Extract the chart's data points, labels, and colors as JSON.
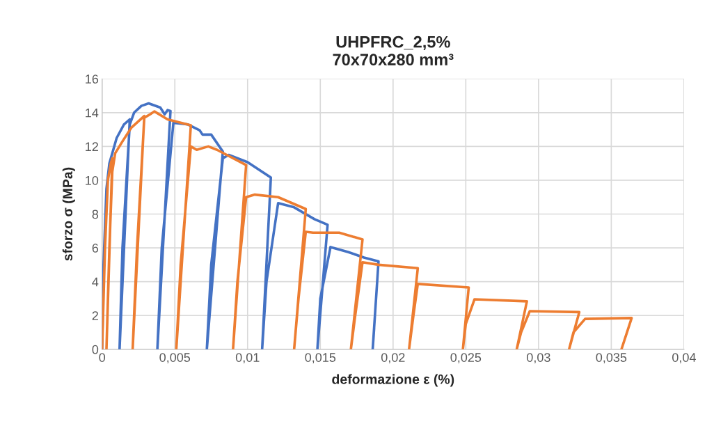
{
  "chart_data": {
    "type": "line",
    "title": "UHPFRC_2,5%\n70x70x280 mm³",
    "xlabel": "deformazione ε (%)",
    "ylabel": "sforzo σ (MPa)",
    "xlim": [
      0,
      0.04
    ],
    "ylim": [
      0,
      16
    ],
    "xticks": [
      0,
      {
        "value": 0.005,
        "label": "0,005"
      },
      {
        "value": 0.01,
        "label": "0,01"
      },
      {
        "value": 0.015,
        "label": "0,015"
      },
      {
        "value": 0.02,
        "label": "0,02"
      },
      {
        "value": 0.025,
        "label": "0,025"
      },
      {
        "value": 0.03,
        "label": "0,03"
      },
      {
        "value": 0.035,
        "label": "0,035"
      },
      {
        "value": 0.04,
        "label": "0,04"
      }
    ],
    "yticks": [
      0,
      2,
      4,
      6,
      8,
      10,
      12,
      14,
      16
    ],
    "grid": true,
    "legend": false,
    "marker": "none",
    "line_style": "solid",
    "series": [
      {
        "color": "#4472c4",
        "x": [
          0,
          0.0001,
          0.0003,
          0.0005,
          0.001,
          0.0015,
          0.0019,
          0.0012,
          0.0014,
          0.0019,
          0.0022,
          0.0027,
          0.0032,
          0.004,
          0.0043,
          0.0045,
          0.0047,
          0.0038,
          0.0041,
          0.0049,
          0.0059,
          0.0067,
          0.0069,
          0.0075,
          0.0083,
          0.0072,
          0.0075,
          0.0083,
          0.0087,
          0.01,
          0.0116,
          0.011,
          0.0113,
          0.0121,
          0.0132,
          0.0146,
          0.0155,
          0.0148,
          0.015,
          0.0157,
          0.0169,
          0.018,
          0.019,
          0.0186,
          0.0187
        ],
        "values": [
          0,
          5,
          9.5,
          11,
          12.5,
          13.3,
          13.6,
          0,
          6,
          13.3,
          14.0,
          14.4,
          14.55,
          14.3,
          13.9,
          14.15,
          14.1,
          0,
          6,
          13.4,
          13.3,
          12.96,
          12.7,
          12.7,
          11.7,
          0,
          5,
          11.3,
          11.5,
          11.07,
          10.16,
          0,
          4,
          8.65,
          8.4,
          7.7,
          7.37,
          0,
          3,
          6.05,
          5.76,
          5.43,
          5.2,
          0,
          1.25
        ]
      },
      {
        "color": "#ed7d31",
        "x": [
          0,
          0.0002,
          0.0004,
          0.0006,
          0.0007,
          0.0003,
          0.0005,
          0.0007,
          0.0009,
          0.0014,
          0.002,
          0.0029,
          0.0021,
          0.0024,
          0.0029,
          0.0033,
          0.0036,
          0.0045,
          0.0061,
          0.0051,
          0.0054,
          0.0061,
          0.0065,
          0.0073,
          0.0079,
          0.0099,
          0.009,
          0.0093,
          0.0099,
          0.0105,
          0.0121,
          0.014,
          0.0132,
          0.0135,
          0.014,
          0.0145,
          0.0163,
          0.0179,
          0.0171,
          0.0174,
          0.0179,
          0.019,
          0.0217,
          0.0211,
          0.0214,
          0.0217,
          0.0252,
          0.0248,
          0.025,
          0.0256,
          0.0292,
          0.0285,
          0.0288,
          0.0294,
          0.0328,
          0.0321,
          0.0324,
          0.0332,
          0.0364,
          0.0357
        ],
        "values": [
          0,
          6,
          10,
          11,
          11.3,
          0,
          6,
          10.5,
          11.6,
          12.3,
          13.1,
          13.8,
          0,
          6,
          13.7,
          13.9,
          14.07,
          13.6,
          13.25,
          0,
          5,
          12,
          11.8,
          12.0,
          11.8,
          10.9,
          0,
          4,
          9.0,
          9.15,
          9.0,
          8.3,
          0,
          3,
          6.95,
          6.9,
          6.9,
          6.5,
          0,
          2,
          5.15,
          5.0,
          4.8,
          0,
          2,
          3.87,
          3.66,
          0,
          1.5,
          2.96,
          2.84,
          0,
          1,
          2.26,
          2.2,
          0,
          1,
          1.8,
          1.85,
          0
        ]
      }
    ]
  }
}
